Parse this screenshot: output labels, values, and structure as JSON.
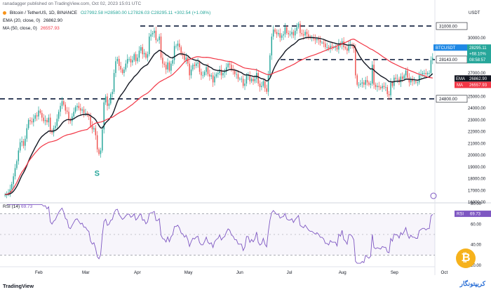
{
  "header": {
    "publisher": "ranadagger published on TradingView.com, Oct 02, 2023 15:01 UTC",
    "symbol": "Bitcoin / TetherUS, 1D, BINANCE",
    "ohlc": "O27992.58  H28580.00  L27826.03  C28295.11  +302.54 (+1.08%)",
    "ema_label": "EMA (20, close, 0)",
    "ema_value": "26862.90",
    "ma_label": "MA (50, close, 0)",
    "ma_value": "26557.93",
    "rsi_label": "RSI (14)",
    "rsi_value": "69.73",
    "currency": "USDT"
  },
  "watermark": "TradingView",
  "brand_logo": "کریپتونگار",
  "colors": {
    "up": "#26a69a",
    "down": "#ef5350",
    "ema": "#131722",
    "ma": "#f23645",
    "rsi": "#7e57c2",
    "level": "#0c1b3a",
    "symbol_tag": "#1e88e5"
  },
  "chart_data": {
    "type": "candlestick",
    "title": "Bitcoin / TetherUS, 1D, BINANCE",
    "ylabel": "USDT",
    "ylim": [
      16000,
      32500
    ],
    "y_ticks": [
      16000,
      17000,
      18000,
      19000,
      20000,
      21000,
      22000,
      23000,
      24000,
      25000,
      26000,
      27000,
      28000,
      29000,
      30000
    ],
    "x_ticks": [
      "Feb",
      "Mar",
      "Apr",
      "May",
      "Jun",
      "Jul",
      "Aug",
      "Sep",
      "Oct"
    ],
    "closes": [
      16650,
      16700,
      16800,
      17100,
      17550,
      18200,
      18900,
      19500,
      20400,
      21100,
      21200,
      20800,
      21400,
      22300,
      23000,
      22900,
      22800,
      23100,
      23400,
      23300,
      23800,
      23600,
      23200,
      22900,
      23000,
      22800,
      23200,
      22100,
      21900,
      22300,
      22500,
      23100,
      23700,
      24200,
      24600,
      24300,
      23800,
      23700,
      23000,
      22900,
      23300,
      23700,
      24100,
      24200,
      24000,
      23800,
      23900,
      23600,
      23600,
      23400,
      23300,
      22500,
      22200,
      22300,
      21700,
      20500,
      20100,
      20400,
      22200,
      24500,
      25000,
      24200,
      24400,
      25200,
      25400,
      27000,
      28000,
      28200,
      27600,
      27300,
      27000,
      27300,
      27800,
      28200,
      28200,
      27900,
      28100,
      28600,
      28000,
      28300,
      28900,
      29200,
      28600,
      28700,
      28300,
      28600,
      30100,
      30300,
      30400,
      30600,
      29800,
      29800,
      30100,
      28300,
      27800,
      27700,
      27300,
      27900,
      27200,
      27800,
      28100,
      29300,
      29300,
      29500,
      29200,
      28600,
      28500,
      28100,
      28300,
      27800,
      26800,
      27300,
      27700,
      27600,
      27800,
      27900,
      27100,
      26800,
      26800,
      27100,
      27500,
      26900,
      26700,
      26800,
      26200,
      26700,
      26900,
      27000,
      27300,
      26800,
      27000,
      27100,
      27500,
      27800,
      27700,
      27300,
      27200,
      26900,
      26900,
      26500,
      26500,
      26500,
      25900,
      26100,
      26800,
      26800,
      26300,
      26500,
      26300,
      26500,
      27000,
      26100,
      25800,
      25900,
      26300,
      25700,
      25400,
      26800,
      28500,
      30100,
      30700,
      30500,
      30300,
      30400,
      30000,
      30200,
      30300,
      30900,
      30400,
      30300,
      30300,
      30500,
      30200,
      30600,
      30900,
      31200,
      30400,
      30300,
      30200,
      30500,
      30300,
      30100,
      30000,
      30000,
      29900,
      29800,
      29900,
      29800,
      29600,
      29600,
      29500,
      29200,
      29200,
      29100,
      29300,
      29200,
      29200,
      29200,
      29000,
      29500,
      29400,
      29700,
      29200,
      29100,
      28900,
      29400,
      29400,
      29300,
      29100,
      26800,
      26000,
      26000,
      26100,
      26200,
      26000,
      26400,
      26200,
      26000,
      26100,
      27700,
      26000,
      25800,
      25900,
      25800,
      25700,
      25900,
      25800,
      25800,
      25200,
      25100,
      26200,
      25900,
      26600,
      26500,
      26500,
      26200,
      26700,
      26500,
      26800,
      27200,
      26600,
      26200,
      26500,
      26300,
      26300,
      26200,
      26200,
      26800,
      26900,
      27000,
      27000,
      26900,
      27000,
      27000,
      28100,
      28300
    ],
    "ema20_last": 26862.9,
    "ma50_last": 26557.93,
    "levels": [
      {
        "value": 31000,
        "label": "31000.00"
      },
      {
        "value": 28143,
        "label": "28143.00"
      },
      {
        "value": 24800,
        "label": "24800.00"
      }
    ],
    "rsi": {
      "ylim": [
        20,
        80
      ],
      "y_ticks": [
        20,
        40,
        60,
        80
      ],
      "overbought": 70,
      "oversold": 30,
      "last": 69.73
    },
    "price_tags": [
      {
        "label": "BTCUSDT",
        "value": "28295.11",
        "sub": "+68.10%",
        "sub2": "08:58:57",
        "role": "last"
      },
      {
        "label": "EMA",
        "value": "26862.90",
        "role": "ema"
      },
      {
        "label": "MA",
        "value": "26557.93",
        "role": "ma"
      },
      {
        "label": "RSI",
        "value": "69.73",
        "role": "rsi"
      }
    ],
    "annotations": [
      "S"
    ]
  }
}
